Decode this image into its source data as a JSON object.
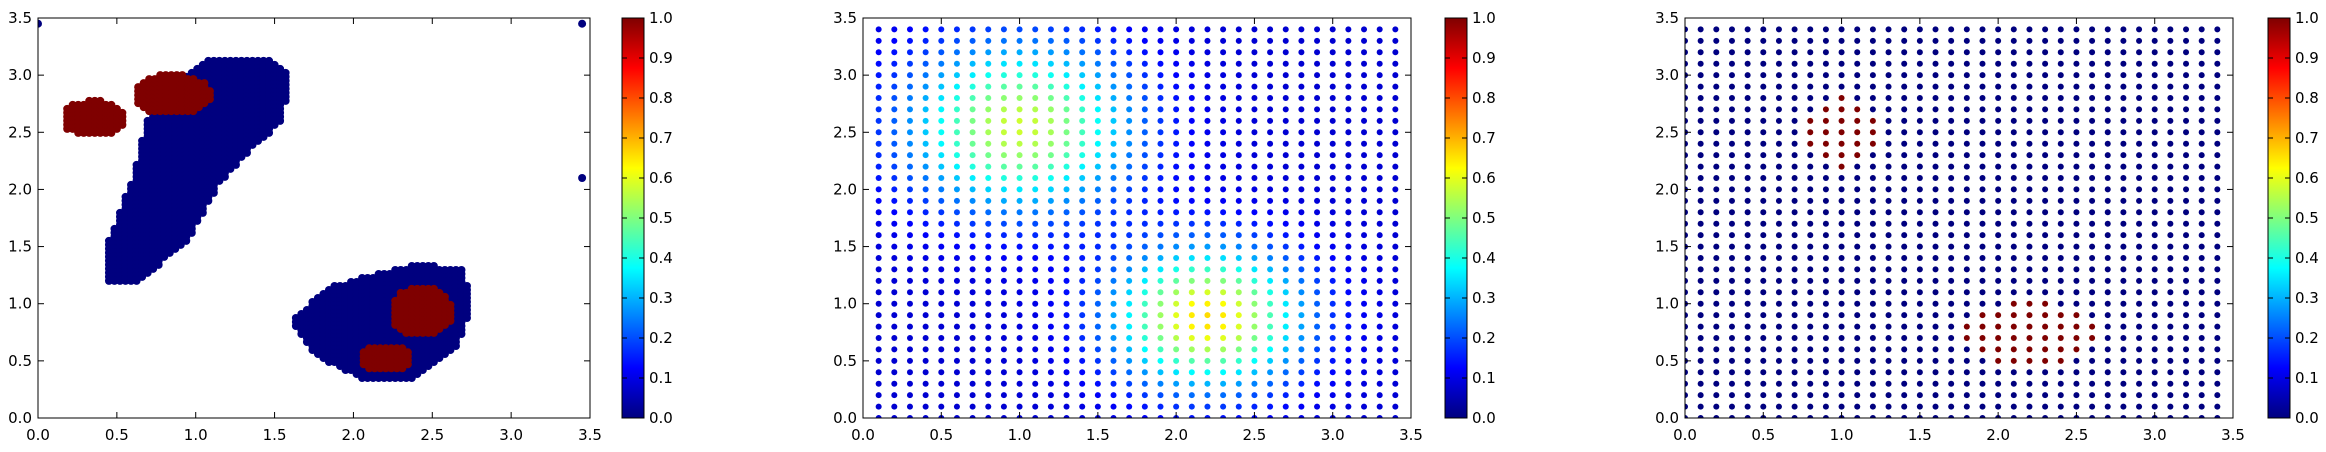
{
  "colormap": {
    "name": "jet",
    "stops": [
      "#00007f",
      "#0000ff",
      "#007fff",
      "#00ffff",
      "#7fff7f",
      "#ffff00",
      "#ff7f00",
      "#ff0000",
      "#7f0000"
    ]
  },
  "chart_data": [
    {
      "type": "scatter",
      "title": "",
      "xlabel": "",
      "ylabel": "",
      "xlim": [
        0.0,
        3.5
      ],
      "ylim": [
        0.0,
        3.5
      ],
      "xticks": [
        "0.0",
        "0.5",
        "1.0",
        "1.5",
        "2.0",
        "2.5",
        "3.0",
        "3.5"
      ],
      "yticks": [
        "0.0",
        "0.5",
        "1.0",
        "1.5",
        "2.0",
        "2.5",
        "3.0",
        "3.5"
      ],
      "colorbar": {
        "range": [
          0.0,
          1.0
        ],
        "ticks": [
          "0.0",
          "0.1",
          "0.2",
          "0.3",
          "0.4",
          "0.5",
          "0.6",
          "0.7",
          "0.8",
          "0.9",
          "1.0"
        ]
      },
      "grid": false,
      "clusters": [
        {
          "region": "elongated band",
          "polygon": [
            [
              0.45,
              1.2
            ],
            [
              0.65,
              1.2
            ],
            [
              0.95,
              1.55
            ],
            [
              1.15,
              2.05
            ],
            [
              1.35,
              2.35
            ],
            [
              1.55,
              2.6
            ],
            [
              1.6,
              3.0
            ],
            [
              1.45,
              3.15
            ],
            [
              1.1,
              3.15
            ],
            [
              0.9,
              2.95
            ],
            [
              0.7,
              2.65
            ],
            [
              0.6,
              2.1
            ],
            [
              0.45,
              1.55
            ]
          ],
          "step": 0.035,
          "value": 0.0
        },
        {
          "region": "lower-right band",
          "polygon": [
            [
              1.6,
              0.85
            ],
            [
              1.75,
              0.55
            ],
            [
              2.05,
              0.35
            ],
            [
              2.4,
              0.35
            ],
            [
              2.65,
              0.6
            ],
            [
              2.75,
              0.95
            ],
            [
              2.7,
              1.3
            ],
            [
              2.4,
              1.35
            ],
            [
              2.1,
              1.25
            ],
            [
              1.85,
              1.15
            ]
          ],
          "step": 0.035,
          "value": 0.0
        },
        {
          "region": "upper-left hot ellipse",
          "center": [
            0.35,
            2.62
          ],
          "radii": [
            0.2,
            0.16
          ],
          "step": 0.035,
          "value": 1.0
        },
        {
          "region": "upper hot ellipse",
          "center": [
            0.85,
            2.83
          ],
          "radii": [
            0.25,
            0.18
          ],
          "step": 0.035,
          "value": 1.0
        },
        {
          "region": "right hot ellipse",
          "center": [
            2.43,
            0.93
          ],
          "radii": [
            0.2,
            0.22
          ],
          "step": 0.035,
          "value": 1.0
        },
        {
          "region": "lower hot ellipse",
          "center": [
            2.2,
            0.52
          ],
          "radii": [
            0.17,
            0.12
          ],
          "step": 0.035,
          "value": 1.0
        }
      ],
      "points": [
        {
          "x": 0.0,
          "y": 3.45,
          "value": 0.0
        },
        {
          "x": 3.45,
          "y": 3.45,
          "value": 0.0
        },
        {
          "x": 3.45,
          "y": 2.1,
          "value": 0.0
        }
      ]
    },
    {
      "type": "scatter",
      "title": "",
      "xlabel": "",
      "ylabel": "",
      "xlim": [
        0.0,
        3.5
      ],
      "ylim": [
        0.0,
        3.5
      ],
      "xticks": [
        "0.0",
        "0.5",
        "1.0",
        "1.5",
        "2.0",
        "2.5",
        "3.0",
        "3.5"
      ],
      "yticks": [
        "0.0",
        "0.5",
        "1.0",
        "1.5",
        "2.0",
        "2.5",
        "3.0",
        "3.5"
      ],
      "colorbar": {
        "range": [
          0.0,
          1.0
        ],
        "ticks": [
          "0.0",
          "0.1",
          "0.2",
          "0.3",
          "0.4",
          "0.5",
          "0.6",
          "0.7",
          "0.8",
          "0.9",
          "1.0"
        ]
      },
      "grid": false,
      "lattice": {
        "x_start": 0.1,
        "x_end": 3.4,
        "y_start": 0.0,
        "y_end": 3.4,
        "step": 0.1
      },
      "value_field": {
        "base": 0.08,
        "blobs": [
          {
            "center": [
              1.0,
              2.55
            ],
            "sigma": 0.5,
            "peak": 0.5
          },
          {
            "center": [
              2.2,
              0.88
            ],
            "sigma": 0.42,
            "peak": 0.58
          }
        ]
      }
    },
    {
      "type": "scatter",
      "title": "",
      "xlabel": "",
      "ylabel": "",
      "xlim": [
        0.0,
        3.5
      ],
      "ylim": [
        0.0,
        3.5
      ],
      "xticks": [
        "0.0",
        "0.5",
        "1.0",
        "1.5",
        "2.0",
        "2.5",
        "3.0",
        "3.5"
      ],
      "yticks": [
        "0.0",
        "0.5",
        "1.0",
        "1.5",
        "2.0",
        "2.5",
        "3.0",
        "3.5"
      ],
      "colorbar": {
        "range": [
          0.0,
          1.0
        ],
        "ticks": [
          "0.0",
          "0.1",
          "0.2",
          "0.3",
          "0.4",
          "0.5",
          "0.6",
          "0.7",
          "0.8",
          "0.9",
          "1.0"
        ]
      },
      "grid": false,
      "lattice": {
        "x_start": 0.0,
        "x_end": 3.4,
        "y_start": 0.0,
        "y_end": 3.4,
        "step": 0.1
      },
      "hot_regions": [
        {
          "center": [
            1.0,
            2.5
          ],
          "radii": [
            0.23,
            0.32
          ],
          "value": 1.0
        },
        {
          "center": [
            2.2,
            0.73
          ],
          "radii": [
            0.42,
            0.3
          ],
          "value": 1.0
        }
      ],
      "default_value": 0.0
    }
  ]
}
